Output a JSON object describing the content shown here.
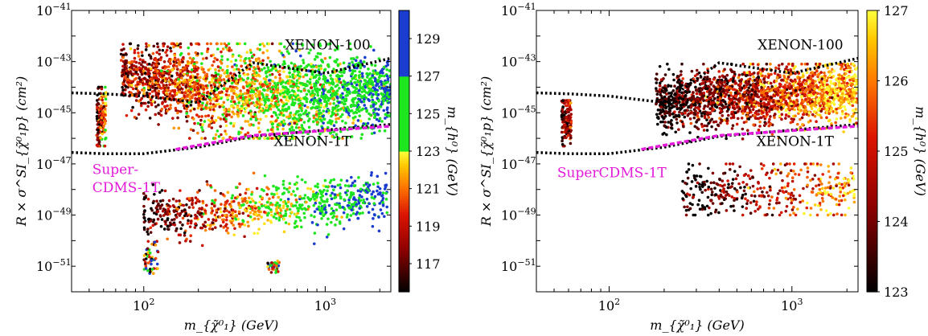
{
  "chart_data": [
    {
      "type": "scatter",
      "panel": "left",
      "xlabel": "m_{χ̃⁰₁} (GeV)",
      "ylabel": "R × σ^SI_{χ̃⁰₁p} (cm²)",
      "xscale": "log",
      "yscale": "log",
      "xlim": [
        40,
        2300
      ],
      "ylim": [
        1e-52,
        1e-41
      ],
      "xticks": [
        {
          "value": 100,
          "base": "10",
          "exp": "2"
        },
        {
          "value": 1000,
          "base": "10",
          "exp": "3"
        }
      ],
      "yticks": [
        {
          "value": 1e-41,
          "base": "10",
          "exp": "−41"
        },
        {
          "value": 1e-43,
          "base": "10",
          "exp": "−43"
        },
        {
          "value": 1e-45,
          "base": "10",
          "exp": "−45"
        },
        {
          "value": 1e-47,
          "base": "10",
          "exp": "−47"
        },
        {
          "value": 1e-49,
          "base": "10",
          "exp": "−49"
        },
        {
          "value": 1e-51,
          "base": "10",
          "exp": "−51"
        }
      ],
      "colorbar": {
        "label": "m_{h⁰} (GeV)",
        "range": [
          115.5,
          130.5
        ],
        "ticks": [
          "117",
          "119",
          "121",
          "123",
          "125",
          "127",
          "129"
        ],
        "colormap": "custom (black→red→orange→yellow | green | blue)",
        "bands": [
          {
            "from": 115.5,
            "to": 123,
            "colors": [
              "#000000",
              "#6b0000",
              "#cc0000",
              "#ff5a00",
              "#ffa000",
              "#ffe000"
            ]
          },
          {
            "from": 123,
            "to": 127,
            "color": "#1ee61e"
          },
          {
            "from": 127,
            "to": 130.5,
            "color": "#1a3ccf"
          }
        ]
      },
      "limit_curves": [
        {
          "name": "XENON-100",
          "color": "#000000",
          "style": "dotted",
          "points": [
            [
              40,
              6e-45
            ],
            [
              60,
              5.5e-45
            ],
            [
              100,
              4.5e-45
            ],
            [
              200,
              2.5e-45
            ],
            [
              400,
              9e-44
            ],
            [
              1000,
              3.5e-44
            ],
            [
              2300,
              1.35e-43
            ]
          ]
        },
        {
          "name": "XENON-1T",
          "color": "#000000",
          "style": "dotted",
          "points": [
            [
              40,
              2.8e-47
            ],
            [
              60,
              2.5e-47
            ],
            [
              100,
              2.5e-47
            ],
            [
              200,
              4.5e-47
            ],
            [
              400,
              1.2e-46
            ],
            [
              1000,
              2.1e-46
            ],
            [
              2300,
              3.5e-46
            ]
          ]
        },
        {
          "name": "Super-CDMS-1T",
          "color": "#e31ad9",
          "style": "dashed",
          "points": [
            [
              150,
              3.7e-47
            ],
            [
              400,
              1.3e-46
            ],
            [
              1000,
              2e-46
            ],
            [
              2300,
              3e-46
            ]
          ]
        }
      ],
      "labels": [
        {
          "text": "XENON-100",
          "x": 600,
          "y": 3e-43
        },
        {
          "text": "XENON-1T",
          "x": 520,
          "y": 5e-47
        },
        {
          "text": "Super-",
          "x": 52,
          "y": 4e-48,
          "color": "#e31ad9"
        },
        {
          "text": "CDMS-1T",
          "x": 52,
          "y": 8e-49,
          "color": "#e31ad9"
        }
      ],
      "regions": [
        {
          "desc": "main upper band",
          "mass_min": 75,
          "mass_max": 2300,
          "sigma_lo": 1e-46,
          "sigma_hi": 5e-43,
          "mh_trend": [
            118,
            127
          ]
        },
        {
          "desc": "low-mass strip",
          "mass_min": 55,
          "mass_max": 62,
          "sigma_lo": 5e-47,
          "sigma_hi": 1e-44,
          "mh_trend": [
            117,
            122
          ]
        },
        {
          "desc": "lower band",
          "mass_min": 100,
          "mass_max": 2200,
          "sigma_lo": 3e-51,
          "sigma_hi": 3e-48,
          "mh_trend": [
            116,
            129
          ]
        }
      ]
    },
    {
      "type": "scatter",
      "panel": "right",
      "xlabel": "m_{χ̃⁰₁} (GeV)",
      "ylabel": "R × σ^SI_{χ̃⁰₁p} (cm²)",
      "xscale": "log",
      "yscale": "log",
      "xlim": [
        40,
        2300
      ],
      "ylim": [
        1e-52,
        1e-41
      ],
      "xticks": [
        {
          "value": 100,
          "base": "10",
          "exp": "2"
        },
        {
          "value": 1000,
          "base": "10",
          "exp": "3"
        }
      ],
      "yticks": [
        {
          "value": 1e-41,
          "base": "10",
          "exp": "−41"
        },
        {
          "value": 1e-43,
          "base": "10",
          "exp": "−43"
        },
        {
          "value": 1e-45,
          "base": "10",
          "exp": "−45"
        },
        {
          "value": 1e-47,
          "base": "10",
          "exp": "−47"
        },
        {
          "value": 1e-49,
          "base": "10",
          "exp": "−49"
        },
        {
          "value": 1e-51,
          "base": "10",
          "exp": "−51"
        }
      ],
      "colorbar": {
        "label": "m_{h⁰} (GeV)",
        "range": [
          123,
          127
        ],
        "ticks": [
          "123",
          "124",
          "125",
          "126",
          "127"
        ],
        "colormap": "hot (black→red→orange→yellow)"
      },
      "limit_curves": [
        {
          "name": "XENON-100",
          "color": "#000000",
          "style": "dotted",
          "points": [
            [
              40,
              6e-45
            ],
            [
              60,
              5.5e-45
            ],
            [
              100,
              4.5e-45
            ],
            [
              200,
              2.5e-45
            ],
            [
              400,
              9e-44
            ],
            [
              1000,
              3.5e-44
            ],
            [
              2300,
              1.35e-43
            ]
          ]
        },
        {
          "name": "XENON-1T",
          "color": "#000000",
          "style": "dotted",
          "points": [
            [
              40,
              2.8e-47
            ],
            [
              60,
              2.5e-47
            ],
            [
              100,
              2.5e-47
            ],
            [
              200,
              4.5e-47
            ],
            [
              400,
              1.2e-46
            ],
            [
              1000,
              2.1e-46
            ],
            [
              2300,
              3.5e-46
            ]
          ]
        },
        {
          "name": "SuperCDMS-1T",
          "color": "#e31ad9",
          "style": "dashed",
          "points": [
            [
              150,
              3.7e-47
            ],
            [
              400,
              1.3e-46
            ],
            [
              1000,
              2e-46
            ],
            [
              2300,
              3e-46
            ]
          ]
        }
      ],
      "labels": [
        {
          "text": "XENON-100",
          "x": 650,
          "y": 3e-43
        },
        {
          "text": "XENON-1T",
          "x": 640,
          "y": 5e-47
        },
        {
          "text": "SuperCDMS-1T",
          "x": 52,
          "y": 3e-48,
          "color": "#e31ad9"
        }
      ],
      "regions": [
        {
          "desc": "main band",
          "mass_min": 180,
          "mass_max": 2300,
          "sigma_lo": 5e-47,
          "sigma_hi": 8e-44,
          "mh_trend": [
            123,
            126.8
          ]
        },
        {
          "desc": "low-mass strip",
          "mass_min": 55,
          "mass_max": 62,
          "sigma_lo": 5e-47,
          "sigma_hi": 3e-45,
          "mh_trend": [
            123.5,
            125
          ]
        },
        {
          "desc": "lower cluster",
          "mass_min": 250,
          "mass_max": 2200,
          "sigma_lo": 1e-49,
          "sigma_hi": 1e-47,
          "mh_trend": [
            123,
            126.5
          ]
        }
      ]
    }
  ]
}
